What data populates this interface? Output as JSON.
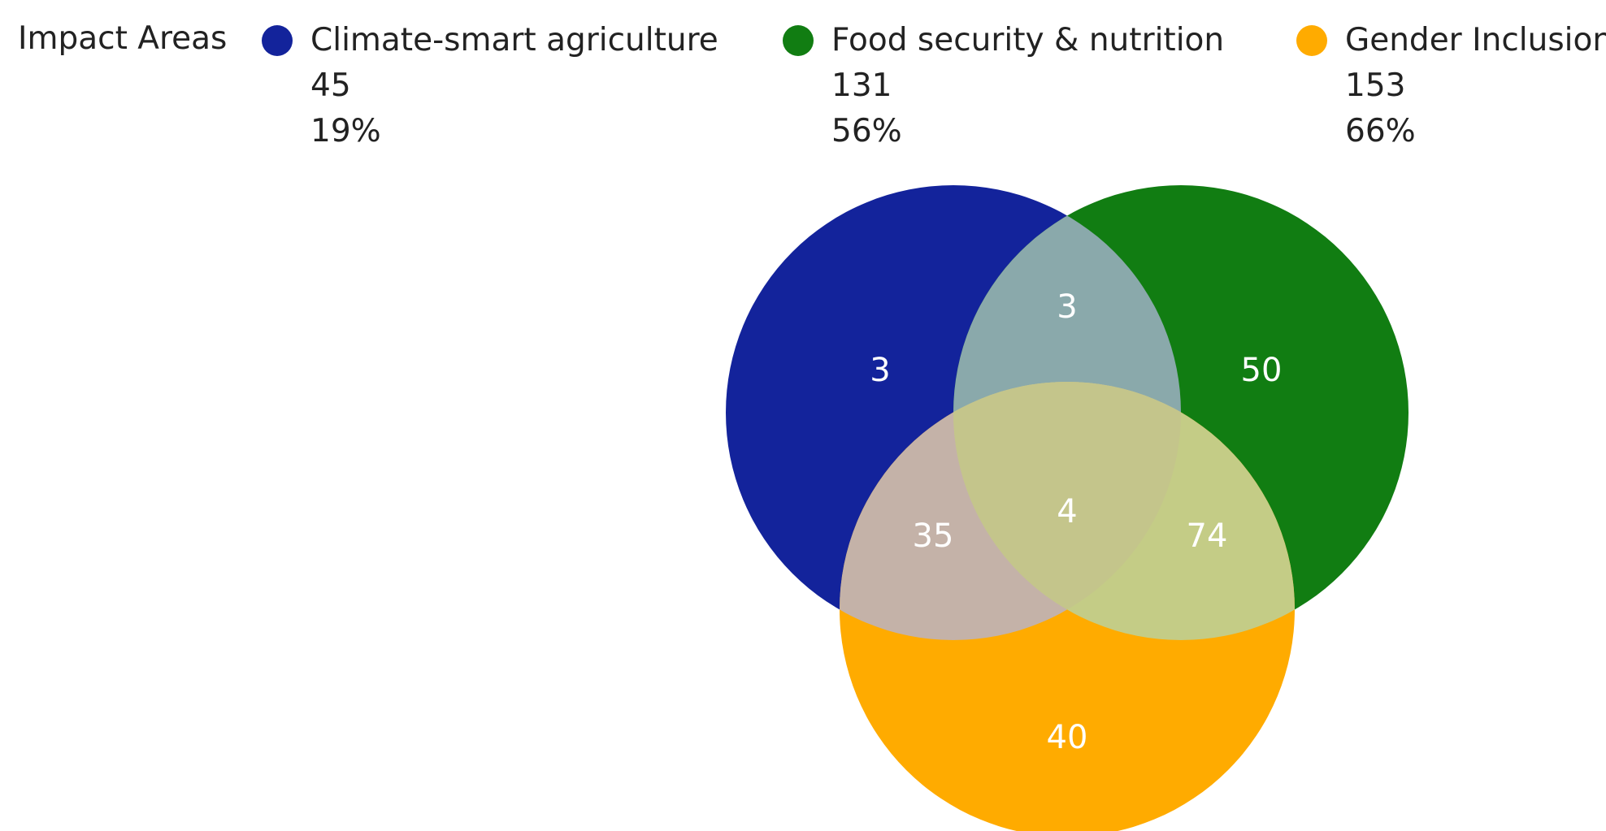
{
  "chart_data": {
    "type": "venn",
    "legend_title": "Impact Areas",
    "legend_position": "top",
    "sets": [
      {
        "key": "A",
        "name": "Climate-smart agriculture",
        "count": "45",
        "percent": "19%",
        "color": "#13239b"
      },
      {
        "key": "B",
        "name": "Food security & nutrition",
        "count": "131",
        "percent": "56%",
        "color": "#117d12"
      },
      {
        "key": "C",
        "name": "Gender Inclusion",
        "count": "153",
        "percent": "66%",
        "color": "#ffab00"
      }
    ],
    "regions": [
      {
        "sets": [
          "A"
        ],
        "value": "3"
      },
      {
        "sets": [
          "B"
        ],
        "value": "50"
      },
      {
        "sets": [
          "C"
        ],
        "value": "40"
      },
      {
        "sets": [
          "A",
          "B"
        ],
        "value": "3"
      },
      {
        "sets": [
          "A",
          "C"
        ],
        "value": "35"
      },
      {
        "sets": [
          "B",
          "C"
        ],
        "value": "74"
      },
      {
        "sets": [
          "A",
          "B",
          "C"
        ],
        "value": "4"
      }
    ],
    "overlap_colors": {
      "AB": "#8aa9ab",
      "AC": "#c4b2a8",
      "BC": "#c4cc86",
      "ABC": "#c4c58b"
    }
  }
}
